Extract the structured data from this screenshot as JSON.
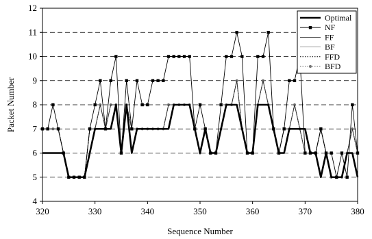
{
  "chart_data": {
    "type": "line",
    "xlabel": "Sequence Number",
    "ylabel": "Packet Number",
    "xlim": [
      320,
      380
    ],
    "ylim": [
      4,
      12
    ],
    "x_ticks": [
      320,
      330,
      340,
      350,
      360,
      370,
      380
    ],
    "y_ticks": [
      4,
      5,
      6,
      7,
      8,
      9,
      10,
      11,
      12
    ],
    "grid": "horizontal-dashed",
    "legend_position": "top-right",
    "x": [
      320,
      321,
      322,
      323,
      324,
      325,
      326,
      327,
      328,
      329,
      330,
      331,
      332,
      333,
      334,
      335,
      336,
      337,
      338,
      339,
      340,
      341,
      342,
      343,
      344,
      345,
      346,
      347,
      348,
      349,
      350,
      351,
      352,
      353,
      354,
      355,
      356,
      357,
      358,
      359,
      360,
      361,
      362,
      363,
      364,
      365,
      366,
      367,
      368,
      369,
      370,
      371,
      372,
      373,
      374,
      375,
      376,
      377,
      378,
      379,
      380
    ],
    "series": [
      {
        "name": "Optimal",
        "style": "thick-solid",
        "values": [
          6,
          6,
          6,
          6,
          6,
          5,
          5,
          5,
          5,
          6,
          7,
          7,
          7,
          7,
          8,
          6,
          8,
          6,
          7,
          7,
          7,
          7,
          7,
          7,
          7,
          8,
          8,
          8,
          8,
          7,
          6,
          7,
          6,
          6,
          7,
          8,
          8,
          8,
          7,
          6,
          6,
          8,
          8,
          8,
          7,
          6,
          6,
          7,
          7,
          7,
          7,
          6,
          6,
          5,
          6,
          5,
          5,
          5,
          6,
          6,
          5
        ]
      },
      {
        "name": "NF",
        "style": "solid-square",
        "values": [
          7,
          7,
          8,
          7,
          6,
          5,
          5,
          5,
          5,
          7,
          8,
          9,
          7,
          9,
          10,
          6,
          9,
          7,
          9,
          8,
          8,
          9,
          9,
          9,
          10,
          10,
          10,
          10,
          10,
          7,
          8,
          7,
          6,
          6,
          8,
          10,
          10,
          11,
          10,
          6,
          6,
          10,
          10,
          11,
          7,
          6,
          7,
          9,
          9,
          10,
          6,
          6,
          6,
          7,
          6,
          6,
          5,
          6,
          5,
          8,
          6
        ]
      },
      {
        "name": "FF",
        "style": "thin-solid",
        "values": [
          7,
          7,
          7,
          7,
          6,
          5,
          5,
          5,
          5,
          7,
          7,
          8,
          7,
          8,
          8,
          6,
          8,
          7,
          7,
          7,
          7,
          7,
          7,
          7,
          8,
          8,
          8,
          8,
          8,
          7,
          6,
          7,
          6,
          6,
          7,
          8,
          8,
          9,
          7,
          6,
          6,
          8,
          9,
          8,
          7,
          6,
          7,
          7,
          8,
          7,
          6,
          6,
          6,
          7,
          6,
          5,
          5,
          5,
          6,
          7,
          6
        ]
      },
      {
        "name": "BF",
        "style": "thin-solid-light",
        "values": [
          7,
          7,
          7,
          7,
          6,
          5,
          5,
          5,
          5,
          7,
          7,
          8,
          7,
          8,
          8,
          6,
          8,
          7,
          7,
          7,
          7,
          7,
          7,
          7,
          8,
          8,
          8,
          8,
          8,
          7,
          6,
          7,
          6,
          6,
          7,
          8,
          8,
          9,
          7,
          6,
          6,
          8,
          9,
          8,
          7,
          6,
          7,
          7,
          8,
          7,
          6,
          6,
          6,
          7,
          6,
          5,
          5,
          5,
          6,
          7,
          6
        ]
      },
      {
        "name": "FFD",
        "style": "dotted",
        "values": [
          7,
          7,
          7,
          7,
          6,
          5,
          5,
          5,
          5,
          7,
          7,
          8,
          7,
          8,
          8,
          6,
          8,
          7,
          7,
          7,
          7,
          7,
          7,
          7,
          8,
          8,
          8,
          8,
          8,
          7,
          6,
          7,
          6,
          6,
          7,
          8,
          8,
          9,
          7,
          6,
          6,
          8,
          9,
          8,
          7,
          6,
          7,
          7,
          8,
          7,
          6,
          6,
          6,
          7,
          6,
          5,
          5,
          5,
          6,
          7,
          6
        ]
      },
      {
        "name": "BFD",
        "style": "dotted-circle",
        "values": [
          7,
          7,
          7,
          7,
          6,
          5,
          5,
          5,
          5,
          7,
          7,
          8,
          7,
          8,
          8,
          6,
          8,
          7,
          7,
          7,
          7,
          7,
          7,
          7,
          8,
          8,
          8,
          8,
          8,
          7,
          6,
          7,
          6,
          6,
          7,
          8,
          8,
          9,
          7,
          6,
          6,
          8,
          9,
          8,
          7,
          6,
          7,
          7,
          8,
          7,
          6,
          6,
          6,
          7,
          6,
          5,
          5,
          5,
          6,
          7,
          6
        ]
      }
    ]
  }
}
